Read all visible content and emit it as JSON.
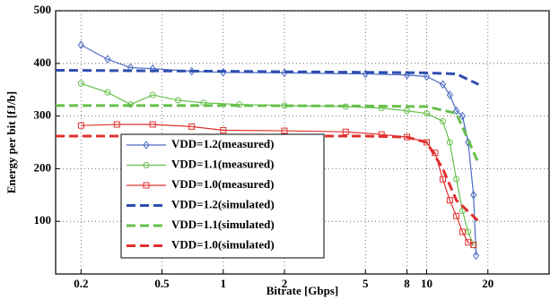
{
  "chart_data": {
    "type": "line",
    "xlabel": "Bitrate [Gbps]",
    "ylabel": "Energy per bit [fJ/b]",
    "xscale": "log",
    "xlim": [
      0.15,
      40
    ],
    "xticks": [
      0.2,
      0.5,
      1,
      2,
      5,
      8,
      10,
      20
    ],
    "ylim": [
      0,
      500
    ],
    "yticks": [
      100,
      200,
      300,
      400,
      500
    ],
    "grid": true,
    "legend": "lower left",
    "series": [
      {
        "name": "VDD=1.2(measured)",
        "color": "#4a6bc4",
        "marker": "diamond",
        "dash": false,
        "x": [
          0.2,
          0.27,
          0.35,
          0.45,
          0.7,
          1,
          2,
          5,
          8,
          10,
          12,
          13,
          14,
          15,
          16,
          17,
          17.5
        ],
        "values": [
          435,
          408,
          392,
          390,
          385,
          383,
          382,
          380,
          378,
          375,
          360,
          340,
          310,
          300,
          250,
          150,
          35
        ]
      },
      {
        "name": "VDD=1.1(measured)",
        "color": "#66c04a",
        "marker": "circle",
        "dash": false,
        "x": [
          0.2,
          0.27,
          0.35,
          0.45,
          0.6,
          0.8,
          1.2,
          2,
          4,
          6,
          8,
          10,
          12,
          13,
          14,
          15,
          16,
          17
        ],
        "values": [
          362,
          345,
          322,
          340,
          330,
          325,
          322,
          320,
          318,
          315,
          310,
          305,
          290,
          250,
          180,
          120,
          80,
          55
        ]
      },
      {
        "name": "VDD=1.0(measured)",
        "color": "#e03030",
        "marker": "square",
        "dash": false,
        "x": [
          0.2,
          0.3,
          0.45,
          0.7,
          1,
          2,
          4,
          6,
          8,
          10,
          11,
          12,
          13,
          14,
          15,
          16,
          17
        ],
        "values": [
          282,
          284,
          284,
          280,
          273,
          272,
          270,
          265,
          260,
          250,
          230,
          180,
          140,
          110,
          80,
          60,
          55
        ]
      },
      {
        "name": "VDD=1.2(simulated)",
        "color": "#2f4fb0",
        "marker": "none",
        "dash": true,
        "x": [
          0.15,
          1,
          5,
          10,
          14,
          18
        ],
        "values": [
          387,
          385,
          383,
          382,
          380,
          360
        ]
      },
      {
        "name": "VDD=1.1(simulated)",
        "color": "#66c04a",
        "marker": "none",
        "dash": true,
        "x": [
          0.15,
          1,
          5,
          10,
          14,
          18
        ],
        "values": [
          320,
          320,
          319,
          318,
          305,
          210
        ]
      },
      {
        "name": "VDD=1.0(simulated)",
        "color": "#e03030",
        "marker": "none",
        "dash": true,
        "x": [
          0.15,
          1,
          5,
          8,
          10,
          12,
          14,
          18
        ],
        "values": [
          262,
          262,
          262,
          260,
          250,
          200,
          140,
          100
        ]
      }
    ]
  }
}
